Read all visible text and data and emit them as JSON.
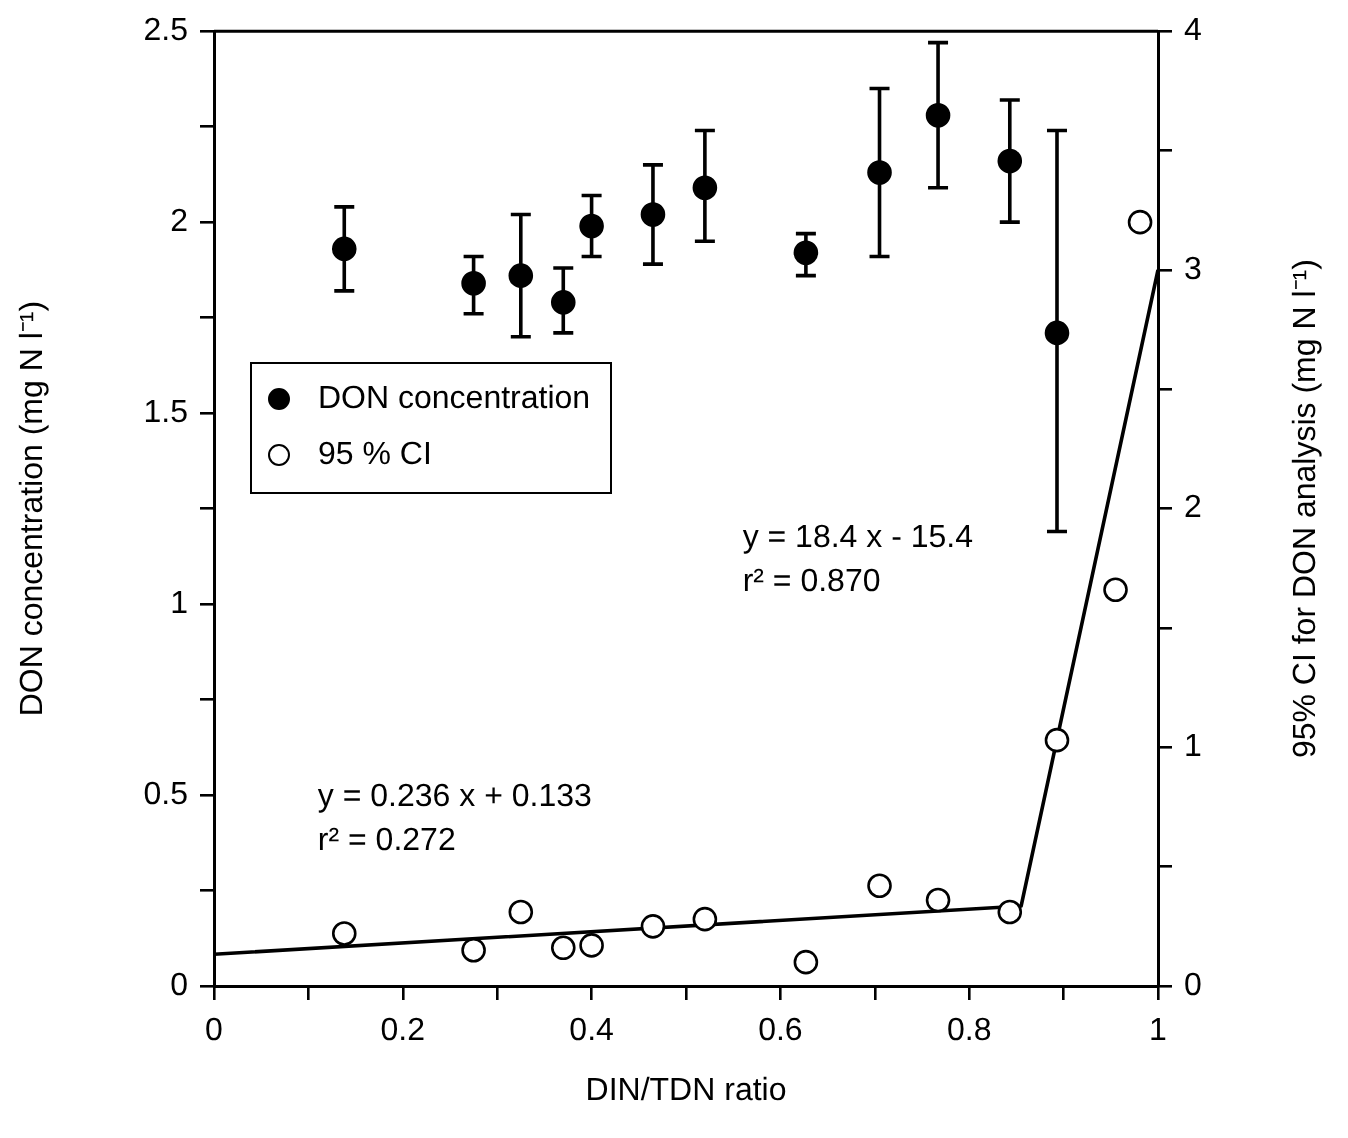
{
  "chart_data": {
    "type": "scatter",
    "xlabel": "DIN/TDN ratio",
    "ylabel": "DON concentration (mg N l⁻¹)",
    "y2label": "95% CI for DON analysis (mg N l⁻¹)",
    "xlim": [
      0,
      1
    ],
    "xticks": [
      0,
      {
        "value": 0.1,
        "label": null
      },
      0.2,
      {
        "value": 0.3,
        "label": null
      },
      0.4,
      {
        "value": 0.5,
        "label": null
      },
      0.6,
      {
        "value": 0.7,
        "label": null
      },
      0.8,
      {
        "value": 0.9,
        "label": null
      },
      1
    ],
    "ylim": [
      0,
      2.5
    ],
    "yticks": [
      0,
      {
        "value": 0.25,
        "label": null
      },
      0.5,
      {
        "value": 0.75,
        "label": null
      },
      1,
      {
        "value": 1.25,
        "label": null
      },
      1.5,
      {
        "value": 1.75,
        "label": null
      },
      2,
      {
        "value": 2.25,
        "label": null
      },
      2.5
    ],
    "y2lim": [
      0,
      4
    ],
    "y2ticks": [
      0,
      {
        "value": 0.5,
        "label": null
      },
      1,
      {
        "value": 1.5,
        "label": null
      },
      2,
      {
        "value": 2.5,
        "label": null
      },
      3,
      {
        "value": 3.5,
        "label": null
      },
      4
    ],
    "marker": "circle",
    "legend": "left",
    "grid": false,
    "series": [
      {
        "name": "DON concentration",
        "color": "#000000",
        "x": [
          0.138,
          0.275,
          0.325,
          0.37,
          0.4,
          0.465,
          0.52,
          0.627,
          0.705,
          0.767,
          0.843,
          0.893
        ],
        "values": [
          1.93,
          1.84,
          1.86,
          1.79,
          1.99,
          2.02,
          2.09,
          1.92,
          2.13,
          2.28,
          2.16,
          1.71
        ],
        "errors": [
          [
            1.82,
            2.04
          ],
          [
            1.76,
            1.91
          ],
          [
            1.7,
            2.02
          ],
          [
            1.71,
            1.88
          ],
          [
            1.91,
            2.07
          ],
          [
            1.89,
            2.15
          ],
          [
            1.95,
            2.24
          ],
          [
            1.86,
            1.97
          ],
          [
            1.91,
            2.35
          ],
          [
            2.09,
            2.47
          ],
          [
            2.0,
            2.32
          ],
          [
            1.19,
            2.24
          ]
        ]
      },
      {
        "name": "95 % CI",
        "color": "#000000",
        "axis": "y2",
        "x": [
          0.138,
          0.275,
          0.325,
          0.37,
          0.4,
          0.465,
          0.52,
          0.627,
          0.705,
          0.767,
          0.843,
          0.893,
          0.955,
          0.981
        ],
        "values": [
          0.22,
          0.15,
          0.31,
          0.16,
          0.17,
          0.25,
          0.28,
          0.1,
          0.42,
          0.36,
          0.31,
          1.03,
          1.66,
          3.2
        ]
      },
      {
        "type": "line",
        "color": "#000000",
        "axis": "y2",
        "marker": "none",
        "x": [
          0,
          0.855,
          1
        ],
        "values": [
          0.133,
          0.335,
          3.0
        ]
      }
    ],
    "annotations": [
      "y = 0.236 x + 0.133\nr² = 0.272",
      "y = 18.4 x - 15.4\nr² = 0.870"
    ]
  }
}
